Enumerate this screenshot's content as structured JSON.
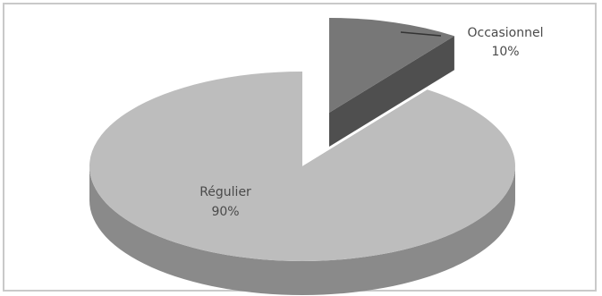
{
  "chart_data": {
    "type": "pie",
    "style": "3d-exploded",
    "title": "",
    "legend": "none",
    "slices": [
      {
        "label": "Régulier",
        "value": 90,
        "percent_label": "90%",
        "color": "#bdbdbd",
        "side_color": "#8a8a8a"
      },
      {
        "label": "Occasionnel",
        "value": 10,
        "percent_label": "10%",
        "color": "#777777",
        "side_color": "#4f4f4f"
      }
    ]
  }
}
